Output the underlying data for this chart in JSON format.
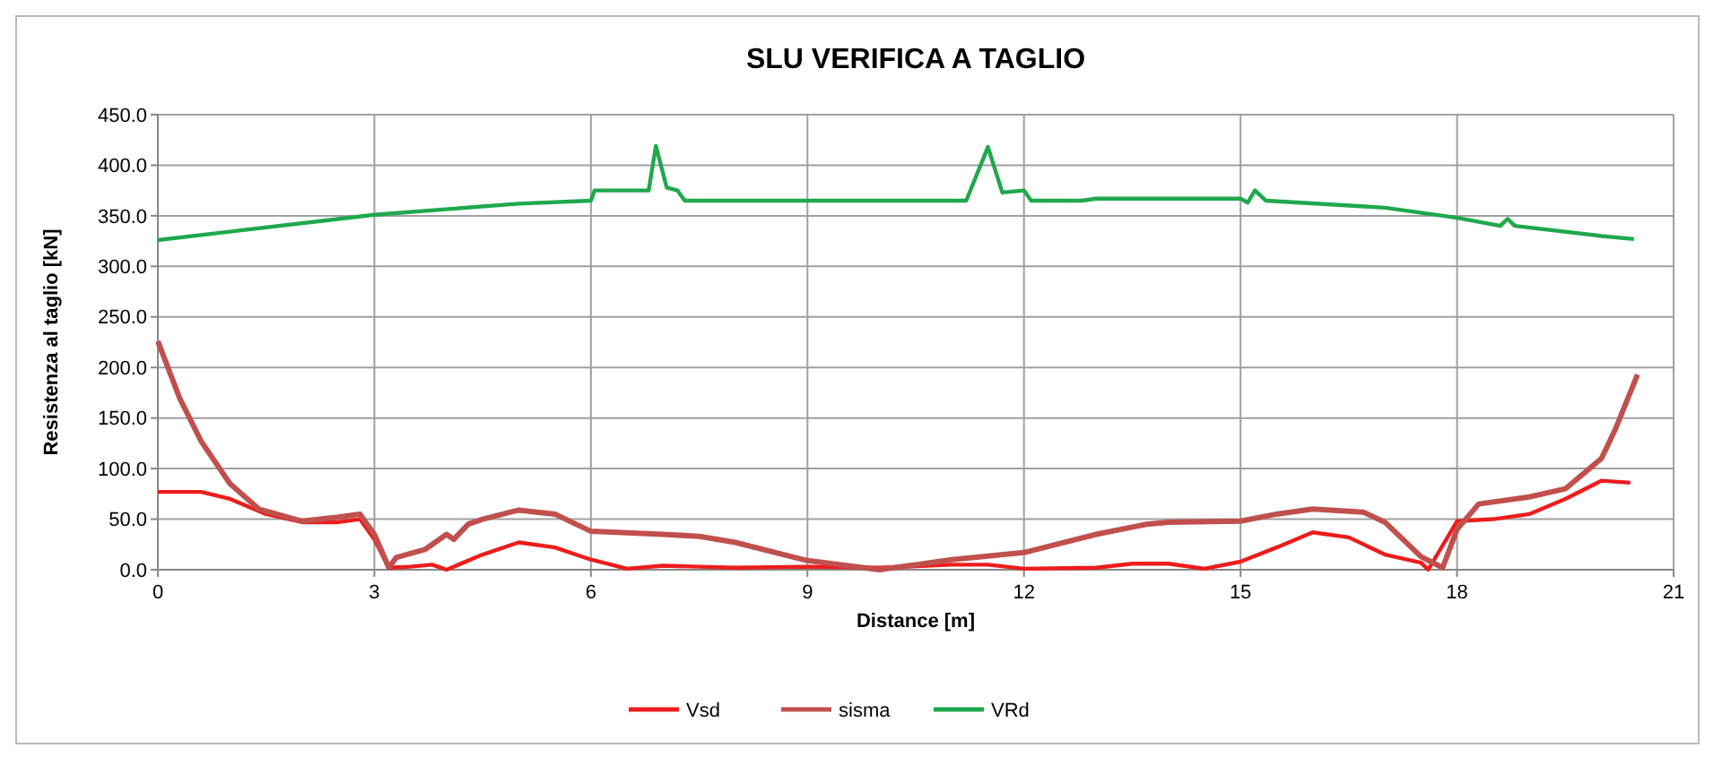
{
  "chart_data": {
    "type": "line",
    "title": "SLU VERIFICA A TAGLIO",
    "xlabel": "Distance [m]",
    "ylabel": "Resistenza al taglio [kN]",
    "xlim": [
      0,
      21
    ],
    "xticks": [
      0,
      3,
      6,
      9,
      12,
      15,
      18,
      21
    ],
    "ylim": [
      0,
      450
    ],
    "yticks": [
      {
        "value": 0,
        "label": "0.0"
      },
      {
        "value": 50,
        "label": "50.0"
      },
      {
        "value": 100,
        "label": "100.0"
      },
      {
        "value": 150,
        "label": "150.0"
      },
      {
        "value": 200,
        "label": "200.0"
      },
      {
        "value": 250,
        "label": "250.0"
      },
      {
        "value": 300,
        "label": "300.0"
      },
      {
        "value": 350,
        "label": "350.0"
      },
      {
        "value": 400,
        "label": "400.0"
      },
      {
        "value": 450,
        "label": "450.0"
      }
    ],
    "grid": true,
    "legend": "bottom",
    "line_style": "solid",
    "series": [
      {
        "name": "Vsd",
        "color": "#ee1c1c",
        "x": [
          0,
          0.6,
          1.0,
          1.5,
          2.0,
          2.5,
          2.8,
          3.0,
          3.2,
          3.5,
          3.8,
          4.0,
          4.5,
          5.0,
          5.5,
          6.0,
          6.5,
          7.0,
          7.5,
          8,
          9,
          10,
          11,
          11.5,
          12,
          13,
          13.5,
          14,
          14.5,
          15,
          15.5,
          16,
          16.5,
          17,
          17.5,
          17.6,
          18,
          18.5,
          19,
          19.5,
          20,
          20.4
        ],
        "values": [
          77,
          77,
          70,
          55,
          47,
          47,
          50,
          30,
          2,
          3,
          5,
          0,
          15,
          27,
          22,
          10,
          1,
          4,
          3,
          2,
          3,
          2,
          5,
          5,
          1,
          2,
          6,
          6,
          1,
          8,
          22,
          37,
          32,
          15,
          7,
          0,
          48,
          50,
          55,
          70,
          88,
          86
        ]
      },
      {
        "name": "sisma",
        "color": "#c0504d",
        "x": [
          0,
          0.3,
          0.6,
          1.0,
          1.4,
          2.0,
          2.5,
          2.8,
          3.0,
          3.2,
          3.3,
          3.7,
          4.0,
          4.1,
          4.3,
          4.5,
          5.0,
          5.5,
          6.0,
          7.0,
          7.5,
          8.0,
          9.0,
          10.0,
          10.5,
          11,
          12,
          13,
          13.7,
          14,
          15,
          15.5,
          16,
          16.7,
          17,
          17.5,
          17.8,
          18.0,
          18.3,
          19,
          19.5,
          20,
          20.2,
          20.5
        ],
        "values": [
          226,
          170,
          127,
          85,
          60,
          48,
          52,
          55,
          35,
          2,
          12,
          20,
          35,
          30,
          45,
          50,
          59,
          55,
          38,
          35,
          33,
          27,
          9,
          0,
          5,
          10,
          17,
          35,
          45,
          47,
          48,
          55,
          60,
          57,
          47,
          13,
          2,
          40,
          65,
          72,
          80,
          110,
          140,
          193
        ]
      },
      {
        "name": "VRd",
        "color": "#1fa84c",
        "x": [
          0,
          3,
          5,
          6,
          6.05,
          6.8,
          6.9,
          7.05,
          7.2,
          7.3,
          11.2,
          11.5,
          11.7,
          12,
          12.1,
          12.8,
          13,
          15,
          15.1,
          15.2,
          15.35,
          17,
          18,
          18.6,
          18.7,
          18.8,
          20,
          20.45
        ],
        "values": [
          326,
          351,
          362,
          365,
          375,
          375,
          419,
          378,
          375,
          365,
          365,
          418,
          373,
          375,
          365,
          365,
          367,
          367,
          363,
          375,
          365,
          358,
          348,
          340,
          347,
          340,
          330,
          327
        ]
      }
    ]
  }
}
